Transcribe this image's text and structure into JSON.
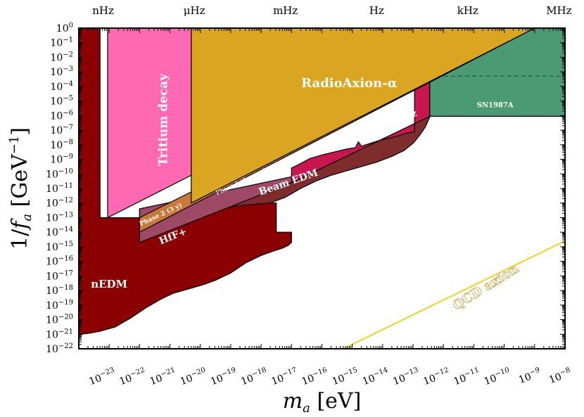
{
  "chart_data": {
    "type": "area",
    "xlabel": "m_a [eV]",
    "ylabel": "1/f_a [GeV^-1]",
    "xscale": "log",
    "yscale": "log",
    "xlim_log10": [
      -24,
      -8
    ],
    "ylim_log10": [
      -22,
      0
    ],
    "x_ticks": [
      {
        "exp": -23,
        "label": "10−23"
      },
      {
        "exp": -22,
        "label": "10−22"
      },
      {
        "exp": -21,
        "label": "10−21"
      },
      {
        "exp": -20,
        "label": "10−20"
      },
      {
        "exp": -19,
        "label": "10−19"
      },
      {
        "exp": -18,
        "label": "10−18"
      },
      {
        "exp": -17,
        "label": "10−17"
      },
      {
        "exp": -16,
        "label": "10−16"
      },
      {
        "exp": -15,
        "label": "10−15"
      },
      {
        "exp": -14,
        "label": "10−14"
      },
      {
        "exp": -13,
        "label": "10−13"
      },
      {
        "exp": -12,
        "label": "10−12"
      },
      {
        "exp": -11,
        "label": "10−11"
      },
      {
        "exp": -10,
        "label": "10−10"
      },
      {
        "exp": -9,
        "label": "10−9"
      },
      {
        "exp": -8,
        "label": "10−8"
      }
    ],
    "y_ticks": [
      {
        "exp": 0,
        "label": "100"
      },
      {
        "exp": -1,
        "label": "10−1"
      },
      {
        "exp": -2,
        "label": "10−2"
      },
      {
        "exp": -3,
        "label": "10−3"
      },
      {
        "exp": -4,
        "label": "10−4"
      },
      {
        "exp": -5,
        "label": "10−5"
      },
      {
        "exp": -6,
        "label": "10−6"
      },
      {
        "exp": -7,
        "label": "10−7"
      },
      {
        "exp": -8,
        "label": "10−8"
      },
      {
        "exp": -9,
        "label": "10−9"
      },
      {
        "exp": -10,
        "label": "10−10"
      },
      {
        "exp": -11,
        "label": "10−11"
      },
      {
        "exp": -12,
        "label": "10−12"
      },
      {
        "exp": -13,
        "label": "10−13"
      },
      {
        "exp": -14,
        "label": "10−14"
      },
      {
        "exp": -15,
        "label": "10−15"
      },
      {
        "exp": -16,
        "label": "10−16"
      },
      {
        "exp": -17,
        "label": "10−17"
      },
      {
        "exp": -18,
        "label": "10−18"
      },
      {
        "exp": -19,
        "label": "10−19"
      },
      {
        "exp": -20,
        "label": "10−20"
      },
      {
        "exp": -21,
        "label": "10−21"
      },
      {
        "exp": -22,
        "label": "10−22"
      }
    ],
    "top_axis": [
      {
        "label": "nHz",
        "log10_m": -23.2
      },
      {
        "label": "μHz",
        "log10_m": -20.2
      },
      {
        "label": "mHz",
        "log10_m": -17.2
      },
      {
        "label": "Hz",
        "log10_m": -14.2
      },
      {
        "label": "kHz",
        "log10_m": -11.2
      },
      {
        "label": "MHz",
        "log10_m": -8.2
      }
    ],
    "regions": [
      {
        "name": "nEDM",
        "label": "nEDM",
        "color": "#8b0000",
        "stroke": "#000000",
        "polygon": [
          [
            -24,
            0
          ],
          [
            -23.3,
            0
          ],
          [
            -23.3,
            -13
          ],
          [
            -22,
            -13
          ],
          [
            -22,
            -12.4
          ],
          [
            -21,
            -12
          ],
          [
            -17.5,
            -12
          ],
          [
            -17.5,
            -14
          ],
          [
            -17,
            -14
          ],
          [
            -17,
            -14.7
          ],
          [
            -17.1,
            -14.9
          ],
          [
            -17.3,
            -15.1
          ],
          [
            -17.6,
            -15.3
          ],
          [
            -18,
            -15.6
          ],
          [
            -18.5,
            -16.1
          ],
          [
            -19,
            -16.8
          ],
          [
            -19.5,
            -17.3
          ],
          [
            -19.9,
            -17.6
          ],
          [
            -20.4,
            -17.9
          ],
          [
            -20.9,
            -18.2
          ],
          [
            -21.3,
            -18.6
          ],
          [
            -21.8,
            -19.2
          ],
          [
            -22.3,
            -19.9
          ],
          [
            -22.8,
            -20.5
          ],
          [
            -23.3,
            -20.8
          ],
          [
            -23.7,
            -20.95
          ],
          [
            -24,
            -21
          ]
        ],
        "label_pos": [
          -23.0,
          -17.6
        ],
        "label_size": 15,
        "label_rotation": 0
      },
      {
        "name": "beam-edm",
        "label": "Beam EDM",
        "color": "#7f2c2c",
        "stroke": "#000000",
        "polygon": [
          [
            -19.05,
            -12
          ],
          [
            -18.0,
            -11.3
          ],
          [
            -17.0,
            -10.6
          ],
          [
            -16.0,
            -9.6
          ],
          [
            -15.0,
            -8.6
          ],
          [
            -14.0,
            -7.6
          ],
          [
            -13.0,
            -6.6
          ],
          [
            -12.45,
            -6.05
          ],
          [
            -12.45,
            -6.1
          ],
          [
            -12.6,
            -6.8
          ],
          [
            -12.8,
            -7.4
          ],
          [
            -13.0,
            -7.9
          ],
          [
            -13.3,
            -8.4
          ],
          [
            -13.7,
            -8.8
          ],
          [
            -14.2,
            -9.2
          ],
          [
            -14.7,
            -9.5
          ],
          [
            -15.2,
            -9.8
          ],
          [
            -15.7,
            -10.1
          ],
          [
            -16.2,
            -10.5
          ],
          [
            -16.7,
            -11.0
          ],
          [
            -17.2,
            -11.6
          ],
          [
            -17.7,
            -12.0
          ],
          [
            -18.3,
            -12.1
          ],
          [
            -18.8,
            -12.2
          ],
          [
            -19.05,
            -12.3
          ]
        ],
        "label_pos": [
          -17.1,
          -10.6
        ],
        "label_size": 14,
        "label_rotation": -19
      },
      {
        "name": "rb-quartz",
        "label": "Rb/Quartz",
        "color": "#c8174f",
        "stroke": "#000000",
        "polygon": [
          [
            -17.0,
            -10.6
          ],
          [
            -16.0,
            -9.6
          ],
          [
            -15.0,
            -8.6
          ],
          [
            -14.0,
            -7.6
          ],
          [
            -13.0,
            -6.6
          ],
          [
            -12.45,
            -6.05
          ],
          [
            -12.45,
            -3.6
          ],
          [
            -12.95,
            -3.6
          ],
          [
            -12.95,
            -7.1
          ],
          [
            -13.2,
            -7.2
          ],
          [
            -13.5,
            -7.4
          ],
          [
            -13.8,
            -7.55
          ],
          [
            -14.1,
            -7.7
          ],
          [
            -14.4,
            -7.9
          ],
          [
            -14.7,
            -8.1
          ],
          [
            -14.8,
            -7.8
          ],
          [
            -14.9,
            -8.2
          ],
          [
            -15.2,
            -8.3
          ],
          [
            -15.6,
            -8.5
          ],
          [
            -16.0,
            -8.7
          ],
          [
            -16.4,
            -8.95
          ],
          [
            -16.8,
            -9.4
          ],
          [
            -17.0,
            -9.6
          ]
        ],
        "label_pos": [
          -13.7,
          -6.4
        ],
        "label_size": 13,
        "label_rotation": -18
      },
      {
        "name": "sn1987a",
        "label": "SN1987A",
        "color": "#4c9a73",
        "stroke": "#000000",
        "polygon": [
          [
            -12.45,
            -6.05
          ],
          [
            -8,
            -6.05
          ],
          [
            -8,
            0
          ],
          [
            -12.45,
            0
          ]
        ],
        "dashed_y": -3.3,
        "label_pos": [
          -10.3,
          -5.3
        ],
        "label_size": 10,
        "label_rotation": 0
      },
      {
        "name": "hff-plus",
        "label": "HfF+",
        "color": "#9e4a66",
        "stroke": "#000000",
        "polygon": [
          [
            -22.0,
            -14.7
          ],
          [
            -17.0,
            -10.6
          ],
          [
            -17.0,
            -10.2
          ],
          [
            -22.0,
            -12.4
          ]
        ],
        "label_pos": [
          -20.9,
          -14.3
        ],
        "label_size": 14,
        "label_rotation": -22
      },
      {
        "name": "radioaxion-phase2",
        "label": "Phase 2 (3 y)",
        "color": "#c8793a",
        "stroke": "#000000",
        "polygon": [
          [
            -22.0,
            -14.0
          ],
          [
            -9.0,
            0
          ],
          [
            -9.5,
            0
          ],
          [
            -22.0,
            -13.0
          ]
        ],
        "label_pos": [
          -21.3,
          -12.8
        ],
        "label_size": 9,
        "label_rotation": -25
      },
      {
        "name": "radioaxion-phase1",
        "label": "RadioAxion-α",
        "color": "#daa520",
        "stroke": "#000000",
        "polygon": [
          [
            -20.3,
            -12.0
          ],
          [
            -9.0,
            0
          ],
          [
            -9.0,
            0
          ],
          [
            -20.3,
            0
          ]
        ],
        "label_pos": [
          -15.1,
          -3.8
        ],
        "label_size": 18,
        "label_rotation": 0,
        "sublabel": "Phase 1 (1 month)",
        "sublabel_pos": [
          -18.6,
          -10.5
        ],
        "sublabel_rotation": -25
      },
      {
        "name": "tritium-decay",
        "label": "Tritium decay",
        "color": "#ff69b4",
        "stroke": "#000000",
        "polygon": [
          [
            -23.05,
            0
          ],
          [
            -20.3,
            0
          ],
          [
            -20.3,
            -10.1
          ],
          [
            -23.05,
            -13.0
          ]
        ],
        "label_pos": [
          -21.2,
          -6.3
        ],
        "label_size": 17,
        "label_rotation": -90
      }
    ],
    "qcd_axion": {
      "label": "QCD axion",
      "color": "#f2d21e",
      "line": [
        [
          -15.3,
          -22
        ],
        [
          -8,
          -14.6
        ]
      ],
      "label_pos": [
        -10.6,
        -17.8
      ],
      "label_rotation": -32
    }
  }
}
